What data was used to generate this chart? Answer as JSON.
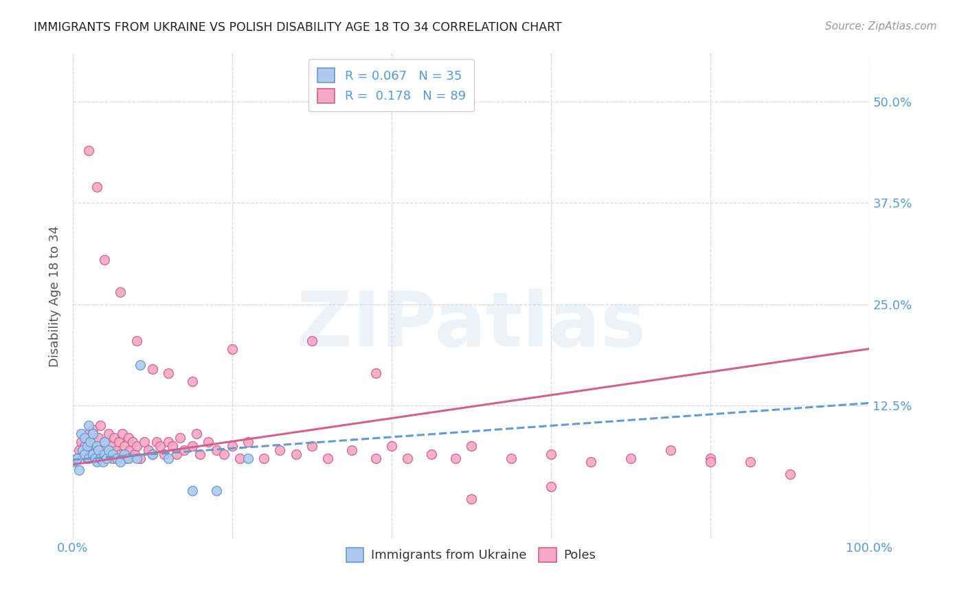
{
  "title": "IMMIGRANTS FROM UKRAINE VS POLISH DISABILITY AGE 18 TO 34 CORRELATION CHART",
  "source": "Source: ZipAtlas.com",
  "ylabel": "Disability Age 18 to 34",
  "xlim": [
    0.0,
    1.0
  ],
  "ylim": [
    -0.04,
    0.56
  ],
  "xtick_labels": [
    "0.0%",
    "100.0%"
  ],
  "xtick_positions": [
    0.0,
    1.0
  ],
  "ytick_labels": [
    "12.5%",
    "25.0%",
    "37.5%",
    "50.0%"
  ],
  "ytick_positions": [
    0.125,
    0.25,
    0.375,
    0.5
  ],
  "background_color": "#ffffff",
  "grid_color": "#d8d8d8",
  "title_color": "#222222",
  "source_color": "#999999",
  "legend_r1": "R = 0.067",
  "legend_n1": "N = 35",
  "legend_r2": "R = 0.178",
  "legend_n2": "N = 89",
  "legend_label1": "Immigrants from Ukraine",
  "legend_label2": "Poles",
  "ukraine_face_color": "#adc9f0",
  "ukraine_edge_color": "#6699cc",
  "poles_face_color": "#f5a8c5",
  "poles_edge_color": "#d06090",
  "ukraine_line_color": "#6699cc",
  "poles_line_color": "#d06090",
  "ukraine_scatter_x": [
    0.0,
    0.005,
    0.008,
    0.01,
    0.012,
    0.015,
    0.015,
    0.018,
    0.02,
    0.02,
    0.022,
    0.025,
    0.025,
    0.028,
    0.03,
    0.03,
    0.032,
    0.035,
    0.038,
    0.04,
    0.04,
    0.042,
    0.045,
    0.05,
    0.055,
    0.06,
    0.065,
    0.07,
    0.08,
    0.085,
    0.1,
    0.12,
    0.15,
    0.18,
    0.22
  ],
  "ukraine_scatter_y": [
    0.055,
    0.06,
    0.045,
    0.09,
    0.07,
    0.065,
    0.085,
    0.075,
    0.06,
    0.1,
    0.08,
    0.065,
    0.09,
    0.06,
    0.055,
    0.075,
    0.07,
    0.06,
    0.055,
    0.065,
    0.08,
    0.06,
    0.07,
    0.065,
    0.06,
    0.055,
    0.065,
    0.06,
    0.06,
    0.175,
    0.065,
    0.06,
    0.02,
    0.02,
    0.06
  ],
  "poles_scatter_x": [
    0.005,
    0.008,
    0.01,
    0.012,
    0.015,
    0.018,
    0.02,
    0.02,
    0.022,
    0.025,
    0.025,
    0.028,
    0.03,
    0.032,
    0.035,
    0.035,
    0.038,
    0.04,
    0.042,
    0.045,
    0.048,
    0.05,
    0.052,
    0.055,
    0.058,
    0.06,
    0.062,
    0.065,
    0.068,
    0.07,
    0.072,
    0.075,
    0.078,
    0.08,
    0.085,
    0.09,
    0.095,
    0.1,
    0.105,
    0.11,
    0.115,
    0.12,
    0.125,
    0.13,
    0.135,
    0.14,
    0.15,
    0.155,
    0.16,
    0.17,
    0.18,
    0.19,
    0.2,
    0.21,
    0.22,
    0.24,
    0.26,
    0.28,
    0.3,
    0.32,
    0.35,
    0.38,
    0.4,
    0.42,
    0.45,
    0.48,
    0.5,
    0.55,
    0.6,
    0.65,
    0.7,
    0.75,
    0.8,
    0.85,
    0.9,
    0.02,
    0.03,
    0.04,
    0.06,
    0.08,
    0.1,
    0.12,
    0.15,
    0.2,
    0.3,
    0.38,
    0.5,
    0.6,
    0.8
  ],
  "poles_scatter_y": [
    0.06,
    0.07,
    0.08,
    0.065,
    0.075,
    0.06,
    0.07,
    0.09,
    0.065,
    0.08,
    0.095,
    0.06,
    0.075,
    0.085,
    0.065,
    0.1,
    0.07,
    0.08,
    0.065,
    0.09,
    0.075,
    0.06,
    0.085,
    0.07,
    0.08,
    0.065,
    0.09,
    0.075,
    0.06,
    0.085,
    0.07,
    0.08,
    0.065,
    0.075,
    0.06,
    0.08,
    0.07,
    0.065,
    0.08,
    0.075,
    0.065,
    0.08,
    0.075,
    0.065,
    0.085,
    0.07,
    0.075,
    0.09,
    0.065,
    0.08,
    0.07,
    0.065,
    0.075,
    0.06,
    0.08,
    0.06,
    0.07,
    0.065,
    0.075,
    0.06,
    0.07,
    0.06,
    0.075,
    0.06,
    0.065,
    0.06,
    0.075,
    0.06,
    0.065,
    0.055,
    0.06,
    0.07,
    0.06,
    0.055,
    0.04,
    0.44,
    0.395,
    0.305,
    0.265,
    0.205,
    0.17,
    0.165,
    0.155,
    0.195,
    0.205,
    0.165,
    0.01,
    0.025,
    0.055
  ],
  "ukraine_trend_x": [
    0.0,
    1.0
  ],
  "ukraine_trend_y": [
    0.058,
    0.128
  ],
  "poles_trend_x": [
    0.0,
    1.0
  ],
  "poles_trend_y": [
    0.052,
    0.195
  ],
  "watermark_text": "ZIPatlas",
  "watermark_color": "#c8ddf0",
  "watermark_alpha": 0.35,
  "marker_size": 100,
  "marker_lw": 1.0
}
